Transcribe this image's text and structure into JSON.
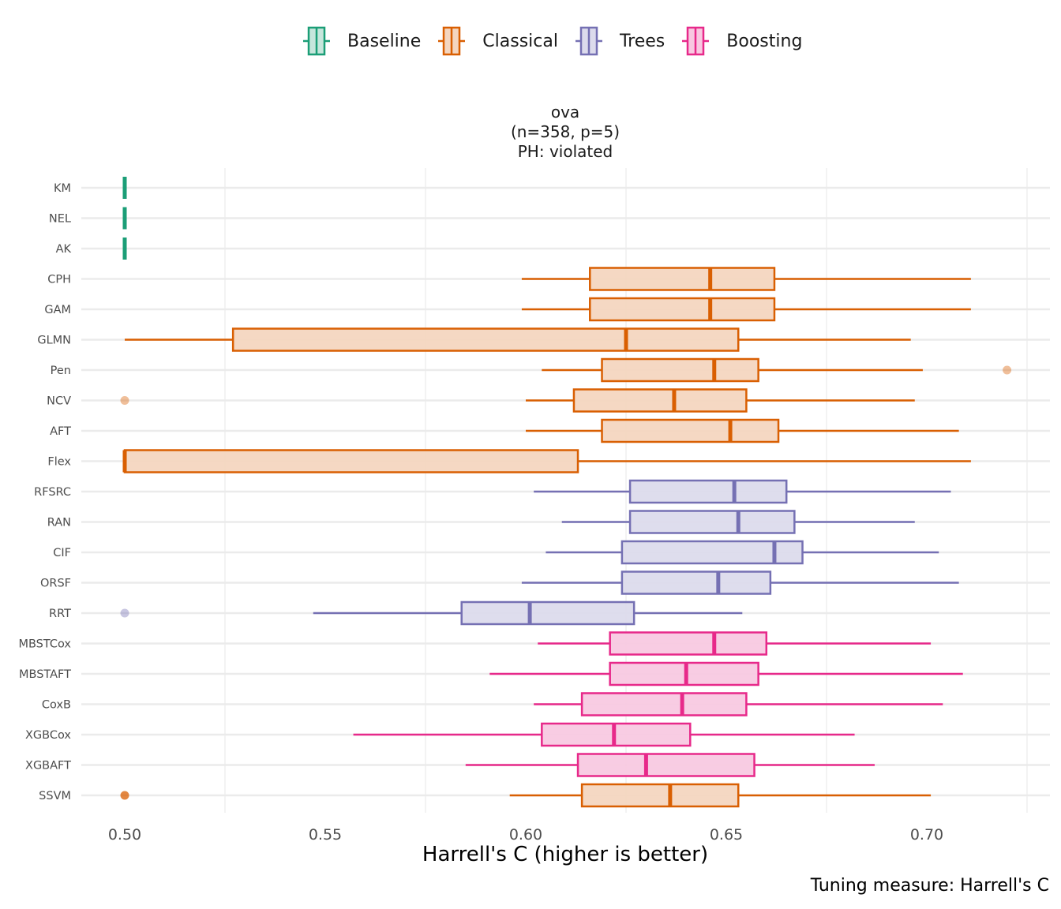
{
  "chart_data": {
    "type": "boxplot-horizontal",
    "facet_title": [
      "ova",
      "(n=358, p=5)",
      "PH: violated"
    ],
    "xlabel": "Harrell's C (higher is better)",
    "ylabel": "",
    "caption": "Tuning measure: Harrell's C",
    "xlim": [
      0.489,
      0.7305
    ],
    "x_ticks": [
      0.5,
      0.55,
      0.6,
      0.65,
      0.7
    ],
    "x_tick_labels": [
      "0.50",
      "0.55",
      "0.60",
      "0.65",
      "0.70"
    ],
    "grid": "on (minor vertical lines only, horizontal lines per category)",
    "legend_position": "top",
    "legend": [
      {
        "name": "Baseline",
        "color": "#1B9E77",
        "fill": "#C6E6DC"
      },
      {
        "name": "Classical",
        "color": "#D95F02",
        "fill": "#F4D6C0"
      },
      {
        "name": "Trees",
        "color": "#7570B3",
        "fill": "#DCDBEC"
      },
      {
        "name": "Boosting",
        "color": "#E7298A",
        "fill": "#F8C9E1"
      }
    ],
    "categories": [
      "KM",
      "NEL",
      "AK",
      "CPH",
      "GAM",
      "GLMN",
      "Pen",
      "NCV",
      "AFT",
      "Flex",
      "RFSRC",
      "RAN",
      "CIF",
      "ORSF",
      "RRT",
      "MBSTCox",
      "MBSTAFT",
      "CoxB",
      "XGBCox",
      "XGBAFT",
      "SSVM"
    ],
    "series": [
      {
        "name": "KM",
        "group": "Baseline",
        "min": 0.5,
        "q1": 0.5,
        "median": 0.5,
        "q3": 0.5,
        "max": 0.5,
        "outliers": []
      },
      {
        "name": "NEL",
        "group": "Baseline",
        "min": 0.5,
        "q1": 0.5,
        "median": 0.5,
        "q3": 0.5,
        "max": 0.5,
        "outliers": []
      },
      {
        "name": "AK",
        "group": "Baseline",
        "min": 0.5,
        "q1": 0.5,
        "median": 0.5,
        "q3": 0.5,
        "max": 0.5,
        "outliers": []
      },
      {
        "name": "CPH",
        "group": "Classical",
        "min": 0.599,
        "q1": 0.616,
        "median": 0.646,
        "q3": 0.662,
        "max": 0.711,
        "outliers": []
      },
      {
        "name": "GAM",
        "group": "Classical",
        "min": 0.599,
        "q1": 0.616,
        "median": 0.646,
        "q3": 0.662,
        "max": 0.711,
        "outliers": []
      },
      {
        "name": "GLMN",
        "group": "Classical",
        "min": 0.5,
        "q1": 0.527,
        "median": 0.625,
        "q3": 0.653,
        "max": 0.696,
        "outliers": []
      },
      {
        "name": "Pen",
        "group": "Classical",
        "min": 0.604,
        "q1": 0.619,
        "median": 0.647,
        "q3": 0.658,
        "max": 0.699,
        "outliers": [
          0.72
        ]
      },
      {
        "name": "NCV",
        "group": "Classical",
        "min": 0.6,
        "q1": 0.612,
        "median": 0.637,
        "q3": 0.655,
        "max": 0.697,
        "outliers": [
          0.5
        ]
      },
      {
        "name": "AFT",
        "group": "Classical",
        "min": 0.6,
        "q1": 0.619,
        "median": 0.651,
        "q3": 0.663,
        "max": 0.708,
        "outliers": []
      },
      {
        "name": "Flex",
        "group": "Classical",
        "min": 0.5,
        "q1": 0.5,
        "median": 0.5,
        "q3": 0.613,
        "max": 0.711,
        "outliers": []
      },
      {
        "name": "RFSRC",
        "group": "Trees",
        "min": 0.602,
        "q1": 0.626,
        "median": 0.652,
        "q3": 0.665,
        "max": 0.706,
        "outliers": []
      },
      {
        "name": "RAN",
        "group": "Trees",
        "min": 0.609,
        "q1": 0.626,
        "median": 0.653,
        "q3": 0.667,
        "max": 0.697,
        "outliers": []
      },
      {
        "name": "CIF",
        "group": "Trees",
        "min": 0.605,
        "q1": 0.624,
        "median": 0.662,
        "q3": 0.669,
        "max": 0.703,
        "outliers": []
      },
      {
        "name": "ORSF",
        "group": "Trees",
        "min": 0.599,
        "q1": 0.624,
        "median": 0.648,
        "q3": 0.661,
        "max": 0.708,
        "outliers": []
      },
      {
        "name": "RRT",
        "group": "Trees",
        "min": 0.547,
        "q1": 0.584,
        "median": 0.601,
        "q3": 0.627,
        "max": 0.654,
        "outliers": [
          0.5
        ]
      },
      {
        "name": "MBSTCox",
        "group": "Boosting",
        "min": 0.603,
        "q1": 0.621,
        "median": 0.647,
        "q3": 0.66,
        "max": 0.701,
        "outliers": []
      },
      {
        "name": "MBSTAFT",
        "group": "Boosting",
        "min": 0.591,
        "q1": 0.621,
        "median": 0.64,
        "q3": 0.658,
        "max": 0.709,
        "outliers": []
      },
      {
        "name": "CoxB",
        "group": "Boosting",
        "min": 0.602,
        "q1": 0.614,
        "median": 0.639,
        "q3": 0.655,
        "max": 0.704,
        "outliers": []
      },
      {
        "name": "XGBCox",
        "group": "Boosting",
        "min": 0.557,
        "q1": 0.604,
        "median": 0.622,
        "q3": 0.641,
        "max": 0.682,
        "outliers": []
      },
      {
        "name": "XGBAFT",
        "group": "Boosting",
        "min": 0.585,
        "q1": 0.613,
        "median": 0.63,
        "q3": 0.657,
        "max": 0.687,
        "outliers": []
      },
      {
        "name": "SSVM",
        "group": "Classical",
        "min": 0.596,
        "q1": 0.614,
        "median": 0.636,
        "q3": 0.653,
        "max": 0.701,
        "outliers": [
          0.5
        ]
      }
    ]
  }
}
